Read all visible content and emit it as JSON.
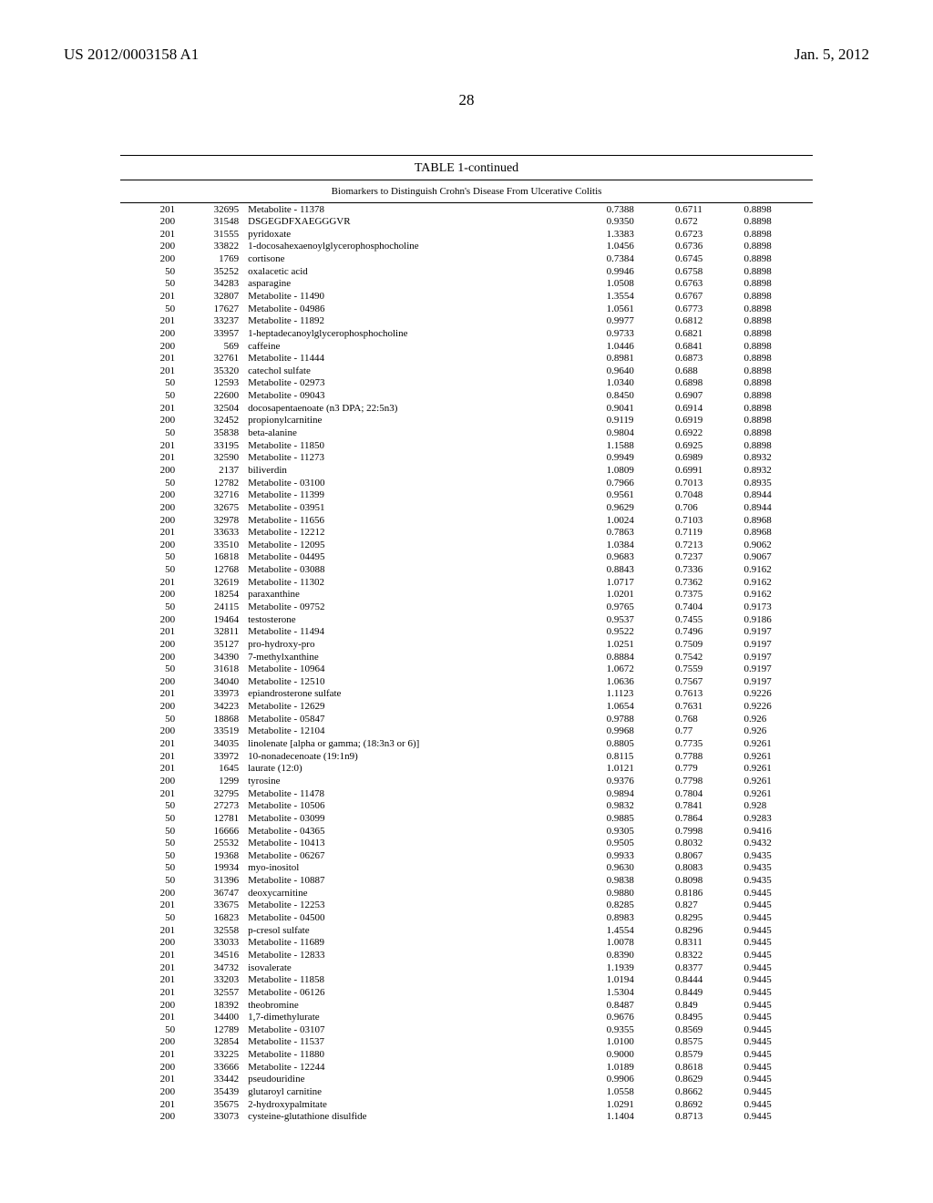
{
  "header": {
    "doc_id": "US 2012/0003158 A1",
    "doc_date": "Jan. 5, 2012",
    "page_number": "28"
  },
  "table": {
    "title": "TABLE 1-continued",
    "subtitle": "Biomarkers to Distinguish Crohn's Disease From Ulcerative Colitis",
    "rows": [
      [
        "201",
        "32695",
        "Metabolite - 11378",
        "0.7388",
        "0.6711",
        "0.8898"
      ],
      [
        "200",
        "31548",
        "DSGEGDFXAEGGGVR",
        "0.9350",
        "0.672",
        "0.8898"
      ],
      [
        "201",
        "31555",
        "pyridoxate",
        "1.3383",
        "0.6723",
        "0.8898"
      ],
      [
        "200",
        "33822",
        "1-docosahexaenoylglycerophosphocholine",
        "1.0456",
        "0.6736",
        "0.8898"
      ],
      [
        "200",
        "1769",
        "cortisone",
        "0.7384",
        "0.6745",
        "0.8898"
      ],
      [
        "50",
        "35252",
        "oxalacetic acid",
        "0.9946",
        "0.6758",
        "0.8898"
      ],
      [
        "50",
        "34283",
        "asparagine",
        "1.0508",
        "0.6763",
        "0.8898"
      ],
      [
        "201",
        "32807",
        "Metabolite - 11490",
        "1.3554",
        "0.6767",
        "0.8898"
      ],
      [
        "50",
        "17627",
        "Metabolite - 04986",
        "1.0561",
        "0.6773",
        "0.8898"
      ],
      [
        "201",
        "33237",
        "Metabolite - 11892",
        "0.9977",
        "0.6812",
        "0.8898"
      ],
      [
        "200",
        "33957",
        "1-heptadecanoylglycerophosphocholine",
        "0.9733",
        "0.6821",
        "0.8898"
      ],
      [
        "200",
        "569",
        "caffeine",
        "1.0446",
        "0.6841",
        "0.8898"
      ],
      [
        "201",
        "32761",
        "Metabolite - 11444",
        "0.8981",
        "0.6873",
        "0.8898"
      ],
      [
        "201",
        "35320",
        "catechol sulfate",
        "0.9640",
        "0.688",
        "0.8898"
      ],
      [
        "50",
        "12593",
        "Metabolite - 02973",
        "1.0340",
        "0.6898",
        "0.8898"
      ],
      [
        "50",
        "22600",
        "Metabolite - 09043",
        "0.8450",
        "0.6907",
        "0.8898"
      ],
      [
        "201",
        "32504",
        "docosapentaenoate (n3 DPA; 22:5n3)",
        "0.9041",
        "0.6914",
        "0.8898"
      ],
      [
        "200",
        "32452",
        "propionylcarnitine",
        "0.9119",
        "0.6919",
        "0.8898"
      ],
      [
        "50",
        "35838",
        "beta-alanine",
        "0.9804",
        "0.6922",
        "0.8898"
      ],
      [
        "201",
        "33195",
        "Metabolite - 11850",
        "1.1588",
        "0.6925",
        "0.8898"
      ],
      [
        "201",
        "32590",
        "Metabolite - 11273",
        "0.9949",
        "0.6989",
        "0.8932"
      ],
      [
        "200",
        "2137",
        "biliverdin",
        "1.0809",
        "0.6991",
        "0.8932"
      ],
      [
        "50",
        "12782",
        "Metabolite - 03100",
        "0.7966",
        "0.7013",
        "0.8935"
      ],
      [
        "200",
        "32716",
        "Metabolite - 11399",
        "0.9561",
        "0.7048",
        "0.8944"
      ],
      [
        "200",
        "32675",
        "Metabolite - 03951",
        "0.9629",
        "0.706",
        "0.8944"
      ],
      [
        "200",
        "32978",
        "Metabolite - 11656",
        "1.0024",
        "0.7103",
        "0.8968"
      ],
      [
        "201",
        "33633",
        "Metabolite - 12212",
        "0.7863",
        "0.7119",
        "0.8968"
      ],
      [
        "200",
        "33510",
        "Metabolite - 12095",
        "1.0384",
        "0.7213",
        "0.9062"
      ],
      [
        "50",
        "16818",
        "Metabolite - 04495",
        "0.9683",
        "0.7237",
        "0.9067"
      ],
      [
        "50",
        "12768",
        "Metabolite - 03088",
        "0.8843",
        "0.7336",
        "0.9162"
      ],
      [
        "201",
        "32619",
        "Metabolite - 11302",
        "1.0717",
        "0.7362",
        "0.9162"
      ],
      [
        "200",
        "18254",
        "paraxanthine",
        "1.0201",
        "0.7375",
        "0.9162"
      ],
      [
        "50",
        "24115",
        "Metabolite - 09752",
        "0.9765",
        "0.7404",
        "0.9173"
      ],
      [
        "200",
        "19464",
        "testosterone",
        "0.9537",
        "0.7455",
        "0.9186"
      ],
      [
        "201",
        "32811",
        "Metabolite - 11494",
        "0.9522",
        "0.7496",
        "0.9197"
      ],
      [
        "200",
        "35127",
        "pro-hydroxy-pro",
        "1.0251",
        "0.7509",
        "0.9197"
      ],
      [
        "200",
        "34390",
        "7-methylxanthine",
        "0.8884",
        "0.7542",
        "0.9197"
      ],
      [
        "50",
        "31618",
        "Metabolite - 10964",
        "1.0672",
        "0.7559",
        "0.9197"
      ],
      [
        "200",
        "34040",
        "Metabolite - 12510",
        "1.0636",
        "0.7567",
        "0.9197"
      ],
      [
        "201",
        "33973",
        "epiandrosterone sulfate",
        "1.1123",
        "0.7613",
        "0.9226"
      ],
      [
        "200",
        "34223",
        "Metabolite - 12629",
        "1.0654",
        "0.7631",
        "0.9226"
      ],
      [
        "50",
        "18868",
        "Metabolite - 05847",
        "0.9788",
        "0.768",
        "0.926"
      ],
      [
        "200",
        "33519",
        "Metabolite - 12104",
        "0.9968",
        "0.77",
        "0.926"
      ],
      [
        "201",
        "34035",
        "linolenate [alpha or gamma; (18:3n3 or 6)]",
        "0.8805",
        "0.7735",
        "0.9261"
      ],
      [
        "201",
        "33972",
        "10-nonadecenoate (19:1n9)",
        "0.8115",
        "0.7788",
        "0.9261"
      ],
      [
        "201",
        "1645",
        "laurate (12:0)",
        "1.0121",
        "0.779",
        "0.9261"
      ],
      [
        "200",
        "1299",
        "tyrosine",
        "0.9376",
        "0.7798",
        "0.9261"
      ],
      [
        "201",
        "32795",
        "Metabolite - 11478",
        "0.9894",
        "0.7804",
        "0.9261"
      ],
      [
        "50",
        "27273",
        "Metabolite - 10506",
        "0.9832",
        "0.7841",
        "0.928"
      ],
      [
        "50",
        "12781",
        "Metabolite - 03099",
        "0.9885",
        "0.7864",
        "0.9283"
      ],
      [
        "50",
        "16666",
        "Metabolite - 04365",
        "0.9305",
        "0.7998",
        "0.9416"
      ],
      [
        "50",
        "25532",
        "Metabolite - 10413",
        "0.9505",
        "0.8032",
        "0.9432"
      ],
      [
        "50",
        "19368",
        "Metabolite - 06267",
        "0.9933",
        "0.8067",
        "0.9435"
      ],
      [
        "50",
        "19934",
        "myo-inositol",
        "0.9630",
        "0.8083",
        "0.9435"
      ],
      [
        "50",
        "31396",
        "Metabolite - 10887",
        "0.9838",
        "0.8098",
        "0.9435"
      ],
      [
        "200",
        "36747",
        "deoxycarnitine",
        "0.9880",
        "0.8186",
        "0.9445"
      ],
      [
        "201",
        "33675",
        "Metabolite - 12253",
        "0.8285",
        "0.827",
        "0.9445"
      ],
      [
        "50",
        "16823",
        "Metabolite - 04500",
        "0.8983",
        "0.8295",
        "0.9445"
      ],
      [
        "201",
        "32558",
        "p-cresol sulfate",
        "1.4554",
        "0.8296",
        "0.9445"
      ],
      [
        "200",
        "33033",
        "Metabolite - 11689",
        "1.0078",
        "0.8311",
        "0.9445"
      ],
      [
        "201",
        "34516",
        "Metabolite - 12833",
        "0.8390",
        "0.8322",
        "0.9445"
      ],
      [
        "201",
        "34732",
        "isovalerate",
        "1.1939",
        "0.8377",
        "0.9445"
      ],
      [
        "201",
        "33203",
        "Metabolite - 11858",
        "1.0194",
        "0.8444",
        "0.9445"
      ],
      [
        "201",
        "32557",
        "Metabolite - 06126",
        "1.5304",
        "0.8449",
        "0.9445"
      ],
      [
        "200",
        "18392",
        "theobromine",
        "0.8487",
        "0.849",
        "0.9445"
      ],
      [
        "201",
        "34400",
        "1,7-dimethylurate",
        "0.9676",
        "0.8495",
        "0.9445"
      ],
      [
        "50",
        "12789",
        "Metabolite - 03107",
        "0.9355",
        "0.8569",
        "0.9445"
      ],
      [
        "200",
        "32854",
        "Metabolite - 11537",
        "1.0100",
        "0.8575",
        "0.9445"
      ],
      [
        "201",
        "33225",
        "Metabolite - 11880",
        "0.9000",
        "0.8579",
        "0.9445"
      ],
      [
        "200",
        "33666",
        "Metabolite - 12244",
        "1.0189",
        "0.8618",
        "0.9445"
      ],
      [
        "201",
        "33442",
        "pseudouridine",
        "0.9906",
        "0.8629",
        "0.9445"
      ],
      [
        "200",
        "35439",
        "glutaroyl carnitine",
        "1.0558",
        "0.8662",
        "0.9445"
      ],
      [
        "201",
        "35675",
        "2-hydroxypalmitate",
        "1.0291",
        "0.8692",
        "0.9445"
      ],
      [
        "200",
        "33073",
        "cysteine-glutathione disulfide",
        "1.1404",
        "0.8713",
        "0.9445"
      ]
    ]
  }
}
